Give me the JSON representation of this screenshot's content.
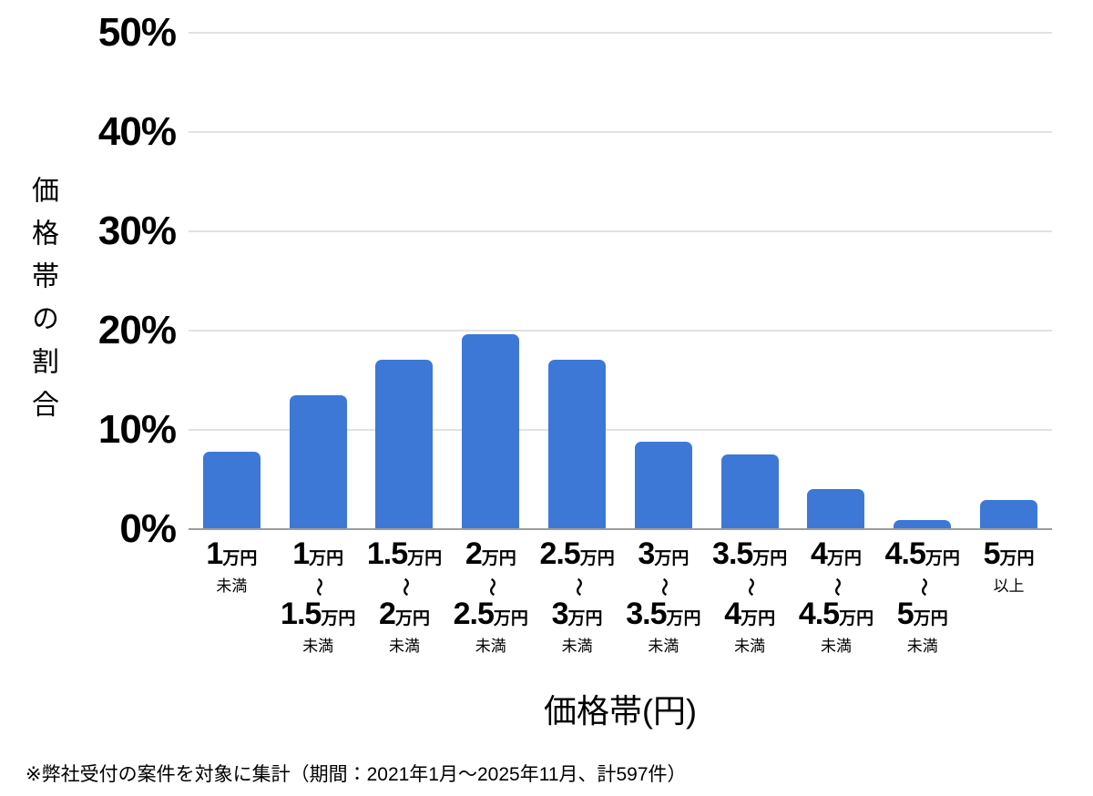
{
  "chart_data": {
    "type": "bar",
    "categories": [
      "1万円未満",
      "1万円〜1.5万円未満",
      "1.5万円〜2万円未満",
      "2万円〜2.5万円未満",
      "2.5万円〜3万円未満",
      "3万円〜3.5万円未満",
      "3.5万円〜4万円未満",
      "4万円〜4.5万円未満",
      "4.5万円〜5万円未満",
      "5万円以上"
    ],
    "values": [
      7.8,
      13.5,
      17.1,
      19.6,
      17.1,
      8.8,
      7.5,
      4.0,
      0.9,
      2.9
    ],
    "title": "",
    "xlabel": "価格帯(円)",
    "ylabel": "価格帯の割合",
    "ylim": [
      0,
      50
    ],
    "yticks": [
      "0%",
      "10%",
      "20%",
      "30%",
      "40%",
      "50%"
    ],
    "grid": true,
    "legend": "none"
  },
  "axis": {
    "y_title": "価格帯の割合",
    "x_title": "価格帯(円)"
  },
  "x_labels": [
    {
      "from_num": "1",
      "from_unit": "万円",
      "note": "未満"
    },
    {
      "from_num": "1",
      "from_unit": "万円",
      "tilde": "〜",
      "to_num": "1.5",
      "to_unit": "万円",
      "note": "未満"
    },
    {
      "from_num": "1.5",
      "from_unit": "万円",
      "tilde": "〜",
      "to_num": "2",
      "to_unit": "万円",
      "note": "未満"
    },
    {
      "from_num": "2",
      "from_unit": "万円",
      "tilde": "〜",
      "to_num": "2.5",
      "to_unit": "万円",
      "note": "未満"
    },
    {
      "from_num": "2.5",
      "from_unit": "万円",
      "tilde": "〜",
      "to_num": "3",
      "to_unit": "万円",
      "note": "未満"
    },
    {
      "from_num": "3",
      "from_unit": "万円",
      "tilde": "〜",
      "to_num": "3.5",
      "to_unit": "万円",
      "note": "未満"
    },
    {
      "from_num": "3.5",
      "from_unit": "万円",
      "tilde": "〜",
      "to_num": "4",
      "to_unit": "万円",
      "note": "未満"
    },
    {
      "from_num": "4",
      "from_unit": "万円",
      "tilde": "〜",
      "to_num": "4.5",
      "to_unit": "万円",
      "note": "未満"
    },
    {
      "from_num": "4.5",
      "from_unit": "万円",
      "tilde": "〜",
      "to_num": "5",
      "to_unit": "万円",
      "note": "未満"
    },
    {
      "from_num": "5",
      "from_unit": "万円",
      "note": "以上"
    }
  ],
  "footnote": "※弊社受付の案件を対象に集計（期間：2021年1月〜2025年11月、計597件）",
  "colors": {
    "bar": "#3d78d6",
    "gridline": "#e2e2e2",
    "axis_line": "#9c9c9c",
    "text": "#000000",
    "background": "#ffffff"
  }
}
